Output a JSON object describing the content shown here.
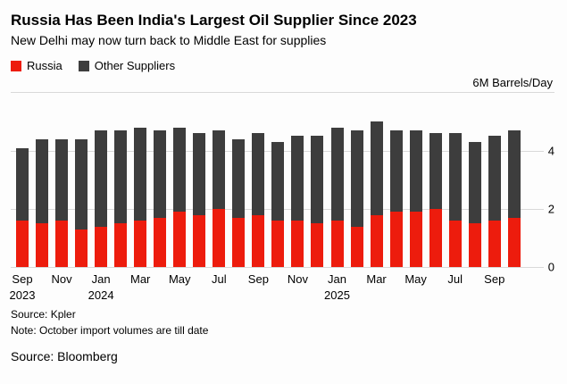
{
  "header": {
    "title": "Russia Has Been India's Largest Oil Supplier Since 2023",
    "subtitle": "New Delhi may now turn back to Middle East for supplies"
  },
  "legend": {
    "items": [
      {
        "label": "Russia",
        "color": "#ed1c0d"
      },
      {
        "label": "Other Suppliers",
        "color": "#3d3d3d"
      }
    ]
  },
  "axis": {
    "unit_label": "6M Barrels/Day",
    "y_ticks": [
      "4",
      "2",
      "0"
    ]
  },
  "chart_data": {
    "type": "bar",
    "stacked": true,
    "title": "Russia Has Been India's Largest Oil Supplier Since 2023",
    "xlabel": "",
    "ylabel": "Barrels/Day (millions)",
    "ylim": [
      0,
      6
    ],
    "grid": true,
    "legend_position": "top-left",
    "categories": [
      "Sep 2023",
      "Oct 2023",
      "Nov 2023",
      "Dec 2023",
      "Jan 2024",
      "Feb 2024",
      "Mar 2024",
      "Apr 2024",
      "May 2024",
      "Jun 2024",
      "Jul 2024",
      "Aug 2024",
      "Sep 2024",
      "Oct 2024",
      "Nov 2024",
      "Dec 2024",
      "Jan 2025",
      "Feb 2025",
      "Mar 2025",
      "Apr 2025",
      "May 2025",
      "Jun 2025",
      "Jul 2025",
      "Aug 2025",
      "Sep 2025",
      "Oct 2025"
    ],
    "x_tick_labels": [
      [
        "Sep",
        "2023"
      ],
      null,
      [
        "Nov"
      ],
      null,
      [
        "Jan",
        "2024"
      ],
      null,
      [
        "Mar"
      ],
      null,
      [
        "May"
      ],
      null,
      [
        "Jul"
      ],
      null,
      [
        "Sep"
      ],
      null,
      [
        "Nov"
      ],
      null,
      [
        "Jan",
        "2025"
      ],
      null,
      [
        "Mar"
      ],
      null,
      [
        "May"
      ],
      null,
      [
        "Jul"
      ],
      null,
      [
        "Sep"
      ],
      null
    ],
    "series": [
      {
        "name": "Russia",
        "color": "#ed1c0d",
        "values": [
          1.6,
          1.5,
          1.6,
          1.3,
          1.4,
          1.5,
          1.6,
          1.7,
          1.9,
          1.8,
          2.0,
          1.7,
          1.8,
          1.6,
          1.6,
          1.5,
          1.6,
          1.4,
          1.8,
          1.9,
          1.9,
          2.0,
          1.6,
          1.5,
          1.6,
          1.7
        ]
      },
      {
        "name": "Other Suppliers",
        "color": "#3d3d3d",
        "values": [
          2.5,
          2.9,
          2.8,
          3.1,
          3.3,
          3.2,
          3.2,
          3.0,
          2.9,
          2.8,
          2.7,
          2.7,
          2.8,
          2.7,
          2.9,
          3.0,
          3.2,
          3.3,
          3.2,
          2.8,
          2.8,
          2.6,
          3.0,
          2.8,
          2.9,
          3.0
        ]
      }
    ]
  },
  "footer": {
    "source": "Source: Kpler",
    "note": "Note: October import volumes are till date",
    "bloomberg": "Source: Bloomberg"
  }
}
